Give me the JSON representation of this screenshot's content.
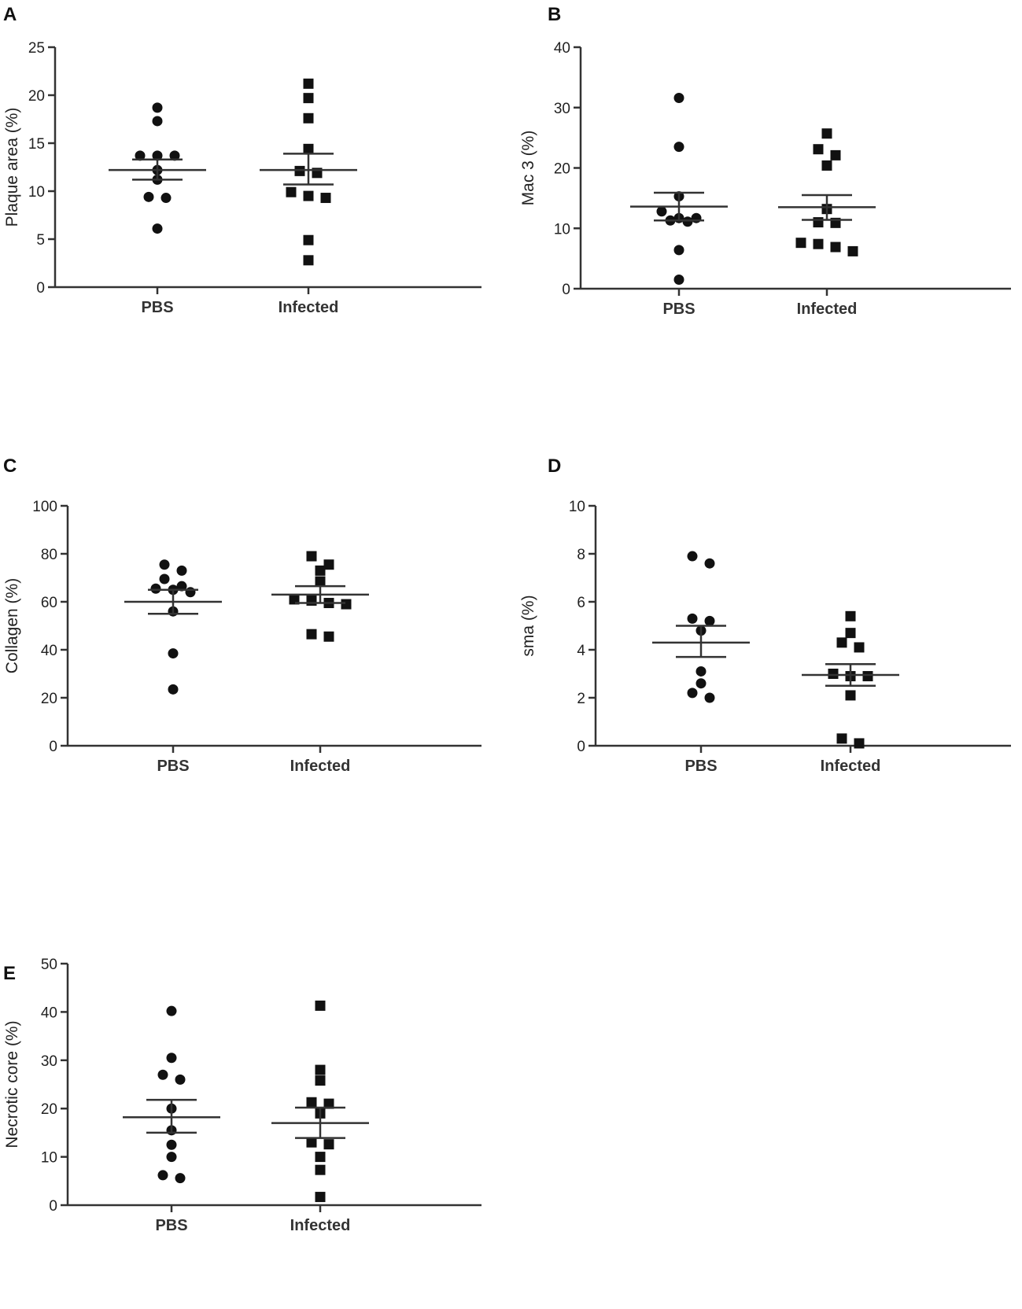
{
  "chart_data": [
    {
      "panel": "A",
      "type": "scatter",
      "ylabel": "Plaque area (%)",
      "ylim": [
        0,
        25
      ],
      "yticks": [
        0,
        5,
        10,
        15,
        20,
        25
      ],
      "categories": [
        "PBS",
        "Infected"
      ],
      "series": [
        {
          "name": "PBS",
          "marker": "circle",
          "values": [
            18.7,
            17.3,
            13.7,
            13.7,
            13.7,
            12.2,
            11.2,
            9.4,
            9.3,
            6.1
          ],
          "mean": 12.2,
          "sem_low": 11.2,
          "sem_high": 13.3
        },
        {
          "name": "Infected",
          "marker": "square",
          "values": [
            21.2,
            19.7,
            17.6,
            14.4,
            12.1,
            11.9,
            9.9,
            9.5,
            9.3,
            4.9,
            2.8
          ],
          "mean": 12.2,
          "sem_low": 10.7,
          "sem_high": 13.9
        }
      ]
    },
    {
      "panel": "B",
      "type": "scatter",
      "ylabel": "Mac 3 (%)",
      "ylim": [
        0,
        40
      ],
      "yticks": [
        0,
        10,
        20,
        30,
        40
      ],
      "categories": [
        "PBS",
        "Infected"
      ],
      "series": [
        {
          "name": "PBS",
          "marker": "circle",
          "values": [
            31.6,
            23.5,
            15.3,
            12.8,
            11.7,
            11.7,
            11.3,
            11.1,
            6.4,
            1.5
          ],
          "mean": 13.6,
          "sem_low": 11.3,
          "sem_high": 15.9
        },
        {
          "name": "Infected",
          "marker": "square",
          "values": [
            25.7,
            23.1,
            22.1,
            20.4,
            13.2,
            11.0,
            10.9,
            7.6,
            7.4,
            6.9,
            6.2
          ],
          "mean": 13.5,
          "sem_low": 11.4,
          "sem_high": 15.5
        }
      ]
    },
    {
      "panel": "C",
      "type": "scatter",
      "ylabel": "Collagen (%)",
      "ylim": [
        0,
        100
      ],
      "yticks": [
        0,
        20,
        40,
        60,
        80,
        100
      ],
      "categories": [
        "PBS",
        "Infected"
      ],
      "series": [
        {
          "name": "PBS",
          "marker": "circle",
          "values": [
            75.5,
            73.0,
            69.5,
            66.5,
            65.5,
            65.0,
            64.0,
            56.0,
            38.5,
            23.5
          ],
          "mean": 60.0,
          "sem_low": 55.0,
          "sem_high": 65.0
        },
        {
          "name": "Infected",
          "marker": "square",
          "values": [
            79.0,
            75.5,
            73.0,
            68.5,
            61.0,
            60.5,
            59.5,
            59.0,
            46.5,
            45.5
          ],
          "mean": 63.0,
          "sem_low": 59.5,
          "sem_high": 66.5
        }
      ]
    },
    {
      "panel": "D",
      "type": "scatter",
      "ylabel": "sma (%)",
      "ylim": [
        0,
        10
      ],
      "yticks": [
        0,
        2,
        4,
        6,
        8,
        10
      ],
      "categories": [
        "PBS",
        "Infected"
      ],
      "series": [
        {
          "name": "PBS",
          "marker": "circle",
          "values": [
            7.9,
            7.6,
            5.3,
            5.2,
            4.8,
            3.1,
            2.6,
            2.2,
            2.0
          ],
          "mean": 4.3,
          "sem_low": 3.7,
          "sem_high": 5.0
        },
        {
          "name": "Infected",
          "marker": "square",
          "values": [
            5.4,
            4.7,
            4.3,
            4.1,
            3.0,
            2.9,
            2.9,
            2.1,
            0.3,
            0.1
          ],
          "mean": 2.95,
          "sem_low": 2.5,
          "sem_high": 3.4
        }
      ]
    },
    {
      "panel": "E",
      "type": "scatter",
      "ylabel": "Necrotic core (%)",
      "ylim": [
        0,
        50
      ],
      "yticks": [
        0,
        10,
        20,
        30,
        40,
        50
      ],
      "categories": [
        "PBS",
        "Infected"
      ],
      "series": [
        {
          "name": "PBS",
          "marker": "circle",
          "values": [
            40.2,
            30.5,
            27.0,
            26.0,
            20.0,
            15.5,
            12.5,
            10.0,
            6.2,
            5.6
          ],
          "mean": 18.2,
          "sem_low": 15.0,
          "sem_high": 21.8
        },
        {
          "name": "Infected",
          "marker": "square",
          "values": [
            41.3,
            28.0,
            25.8,
            21.3,
            21.0,
            19.0,
            13.0,
            12.6,
            10.0,
            7.3,
            1.7
          ],
          "mean": 17.0,
          "sem_low": 13.9,
          "sem_high": 20.2
        }
      ]
    }
  ]
}
